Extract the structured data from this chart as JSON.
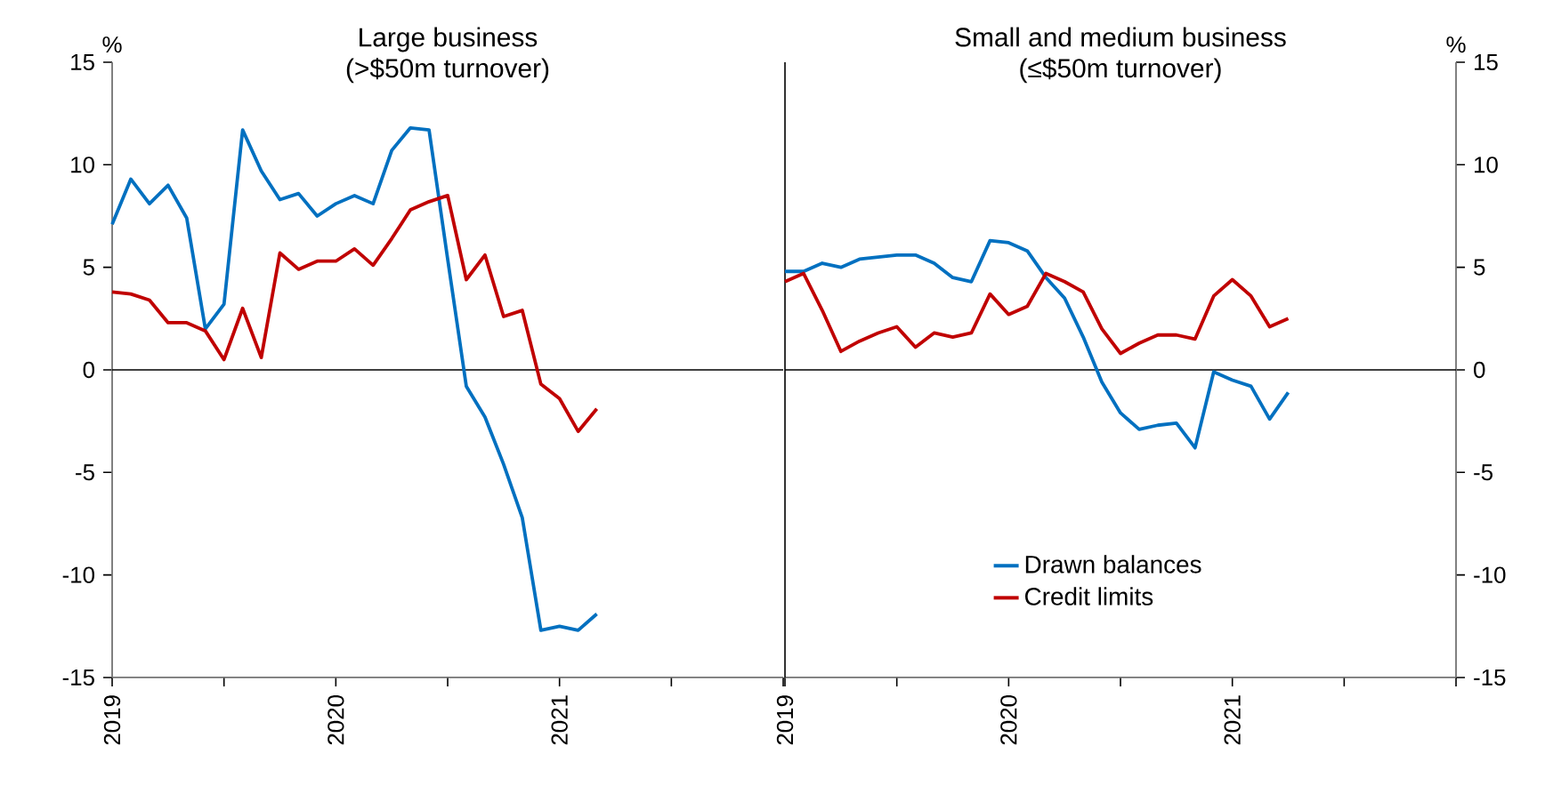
{
  "chart_data": [
    {
      "type": "line",
      "title": "Large business",
      "subtitle": "(>$50m turnover)",
      "ylabel": "%",
      "x": [
        "2019-01",
        "2019-02",
        "2019-03",
        "2019-04",
        "2019-05",
        "2019-06",
        "2019-07",
        "2019-08",
        "2019-09",
        "2019-10",
        "2019-11",
        "2019-12",
        "2020-01",
        "2020-02",
        "2020-03",
        "2020-04",
        "2020-05",
        "2020-06",
        "2020-07",
        "2020-08",
        "2020-09",
        "2020-10",
        "2020-11",
        "2020-12",
        "2021-01",
        "2021-02",
        "2021-03"
      ],
      "series": [
        {
          "color": "#0070c0",
          "values": [
            7.1,
            9.3,
            8.1,
            9.0,
            7.4,
            2.0,
            3.2,
            11.7,
            9.7,
            8.3,
            8.6,
            7.5,
            8.1,
            8.5,
            8.1,
            10.7,
            11.8,
            11.7,
            5.4,
            -0.8,
            -2.3,
            -4.6,
            -7.2,
            -12.7,
            -12.5,
            -12.7,
            -11.9
          ]
        },
        {
          "color": "#c00000",
          "values": [
            3.8,
            3.7,
            3.4,
            2.3,
            2.3,
            1.9,
            0.5,
            3.0,
            0.6,
            5.7,
            4.9,
            5.3,
            5.3,
            5.9,
            5.1,
            6.4,
            7.8,
            8.2,
            8.5,
            4.4,
            5.6,
            2.6,
            2.9,
            -0.7,
            -1.4,
            -3.0,
            -1.9
          ]
        }
      ],
      "xlim": [
        "2019-01",
        "2022-01"
      ],
      "xticks": [
        {
          "value": "2019-01",
          "label": "2019"
        },
        {
          "value": "2019-07",
          "label": null
        },
        {
          "value": "2020-01",
          "label": "2020"
        },
        {
          "value": "2020-07",
          "label": null
        },
        {
          "value": "2021-01",
          "label": "2021"
        },
        {
          "value": "2021-07",
          "label": null
        },
        {
          "value": "2022-01",
          "label": null
        }
      ],
      "ylim": [
        -15,
        15
      ],
      "yticks": [
        -15,
        -10,
        -5,
        0,
        5,
        10,
        15
      ],
      "ref_lines": [
        {
          "axis": "y",
          "value": 0
        }
      ],
      "legend": false
    },
    {
      "type": "line",
      "title": "Small and medium business",
      "subtitle": "(≤$50m turnover)",
      "y2label": "%",
      "x": [
        "2019-01",
        "2019-02",
        "2019-03",
        "2019-04",
        "2019-05",
        "2019-06",
        "2019-07",
        "2019-08",
        "2019-09",
        "2019-10",
        "2019-11",
        "2019-12",
        "2020-01",
        "2020-02",
        "2020-03",
        "2020-04",
        "2020-05",
        "2020-06",
        "2020-07",
        "2020-08",
        "2020-09",
        "2020-10",
        "2020-11",
        "2020-12",
        "2021-01",
        "2021-02",
        "2021-03",
        "2021-04"
      ],
      "series": [
        {
          "name": "Drawn balances",
          "color": "#0070c0",
          "axis": "y2",
          "values": [
            4.8,
            4.8,
            5.2,
            5.0,
            5.4,
            5.5,
            5.6,
            5.6,
            5.2,
            4.5,
            4.3,
            6.3,
            6.2,
            5.8,
            4.5,
            3.5,
            1.6,
            -0.6,
            -2.1,
            -2.9,
            -2.7,
            -2.6,
            -3.8,
            -0.1,
            -0.5,
            -0.8,
            -2.4,
            -1.1
          ]
        },
        {
          "name": "Credit limits",
          "color": "#c00000",
          "axis": "y2",
          "values": [
            4.3,
            4.7,
            2.9,
            0.9,
            1.4,
            1.8,
            2.1,
            1.1,
            1.8,
            1.6,
            1.8,
            3.7,
            2.7,
            3.1,
            4.7,
            4.3,
            3.8,
            2.0,
            0.8,
            1.3,
            1.7,
            1.7,
            1.5,
            3.6,
            4.4,
            3.6,
            2.1,
            2.5
          ]
        }
      ],
      "xlim": [
        "2019-01",
        "2022-01"
      ],
      "xticks": [
        {
          "value": "2019-01",
          "label": "2019"
        },
        {
          "value": "2019-07",
          "label": null
        },
        {
          "value": "2020-01",
          "label": "2020"
        },
        {
          "value": "2020-07",
          "label": null
        },
        {
          "value": "2021-01",
          "label": "2021"
        },
        {
          "value": "2021-07",
          "label": null
        },
        {
          "value": "2022-01",
          "label": null
        }
      ],
      "y2lim": [
        -15,
        15
      ],
      "y2ticks": [
        -15,
        -10,
        -5,
        0,
        5,
        10,
        15
      ],
      "ref_lines": [
        {
          "axis": "y2",
          "value": 0
        }
      ],
      "legend": "bottom"
    }
  ]
}
